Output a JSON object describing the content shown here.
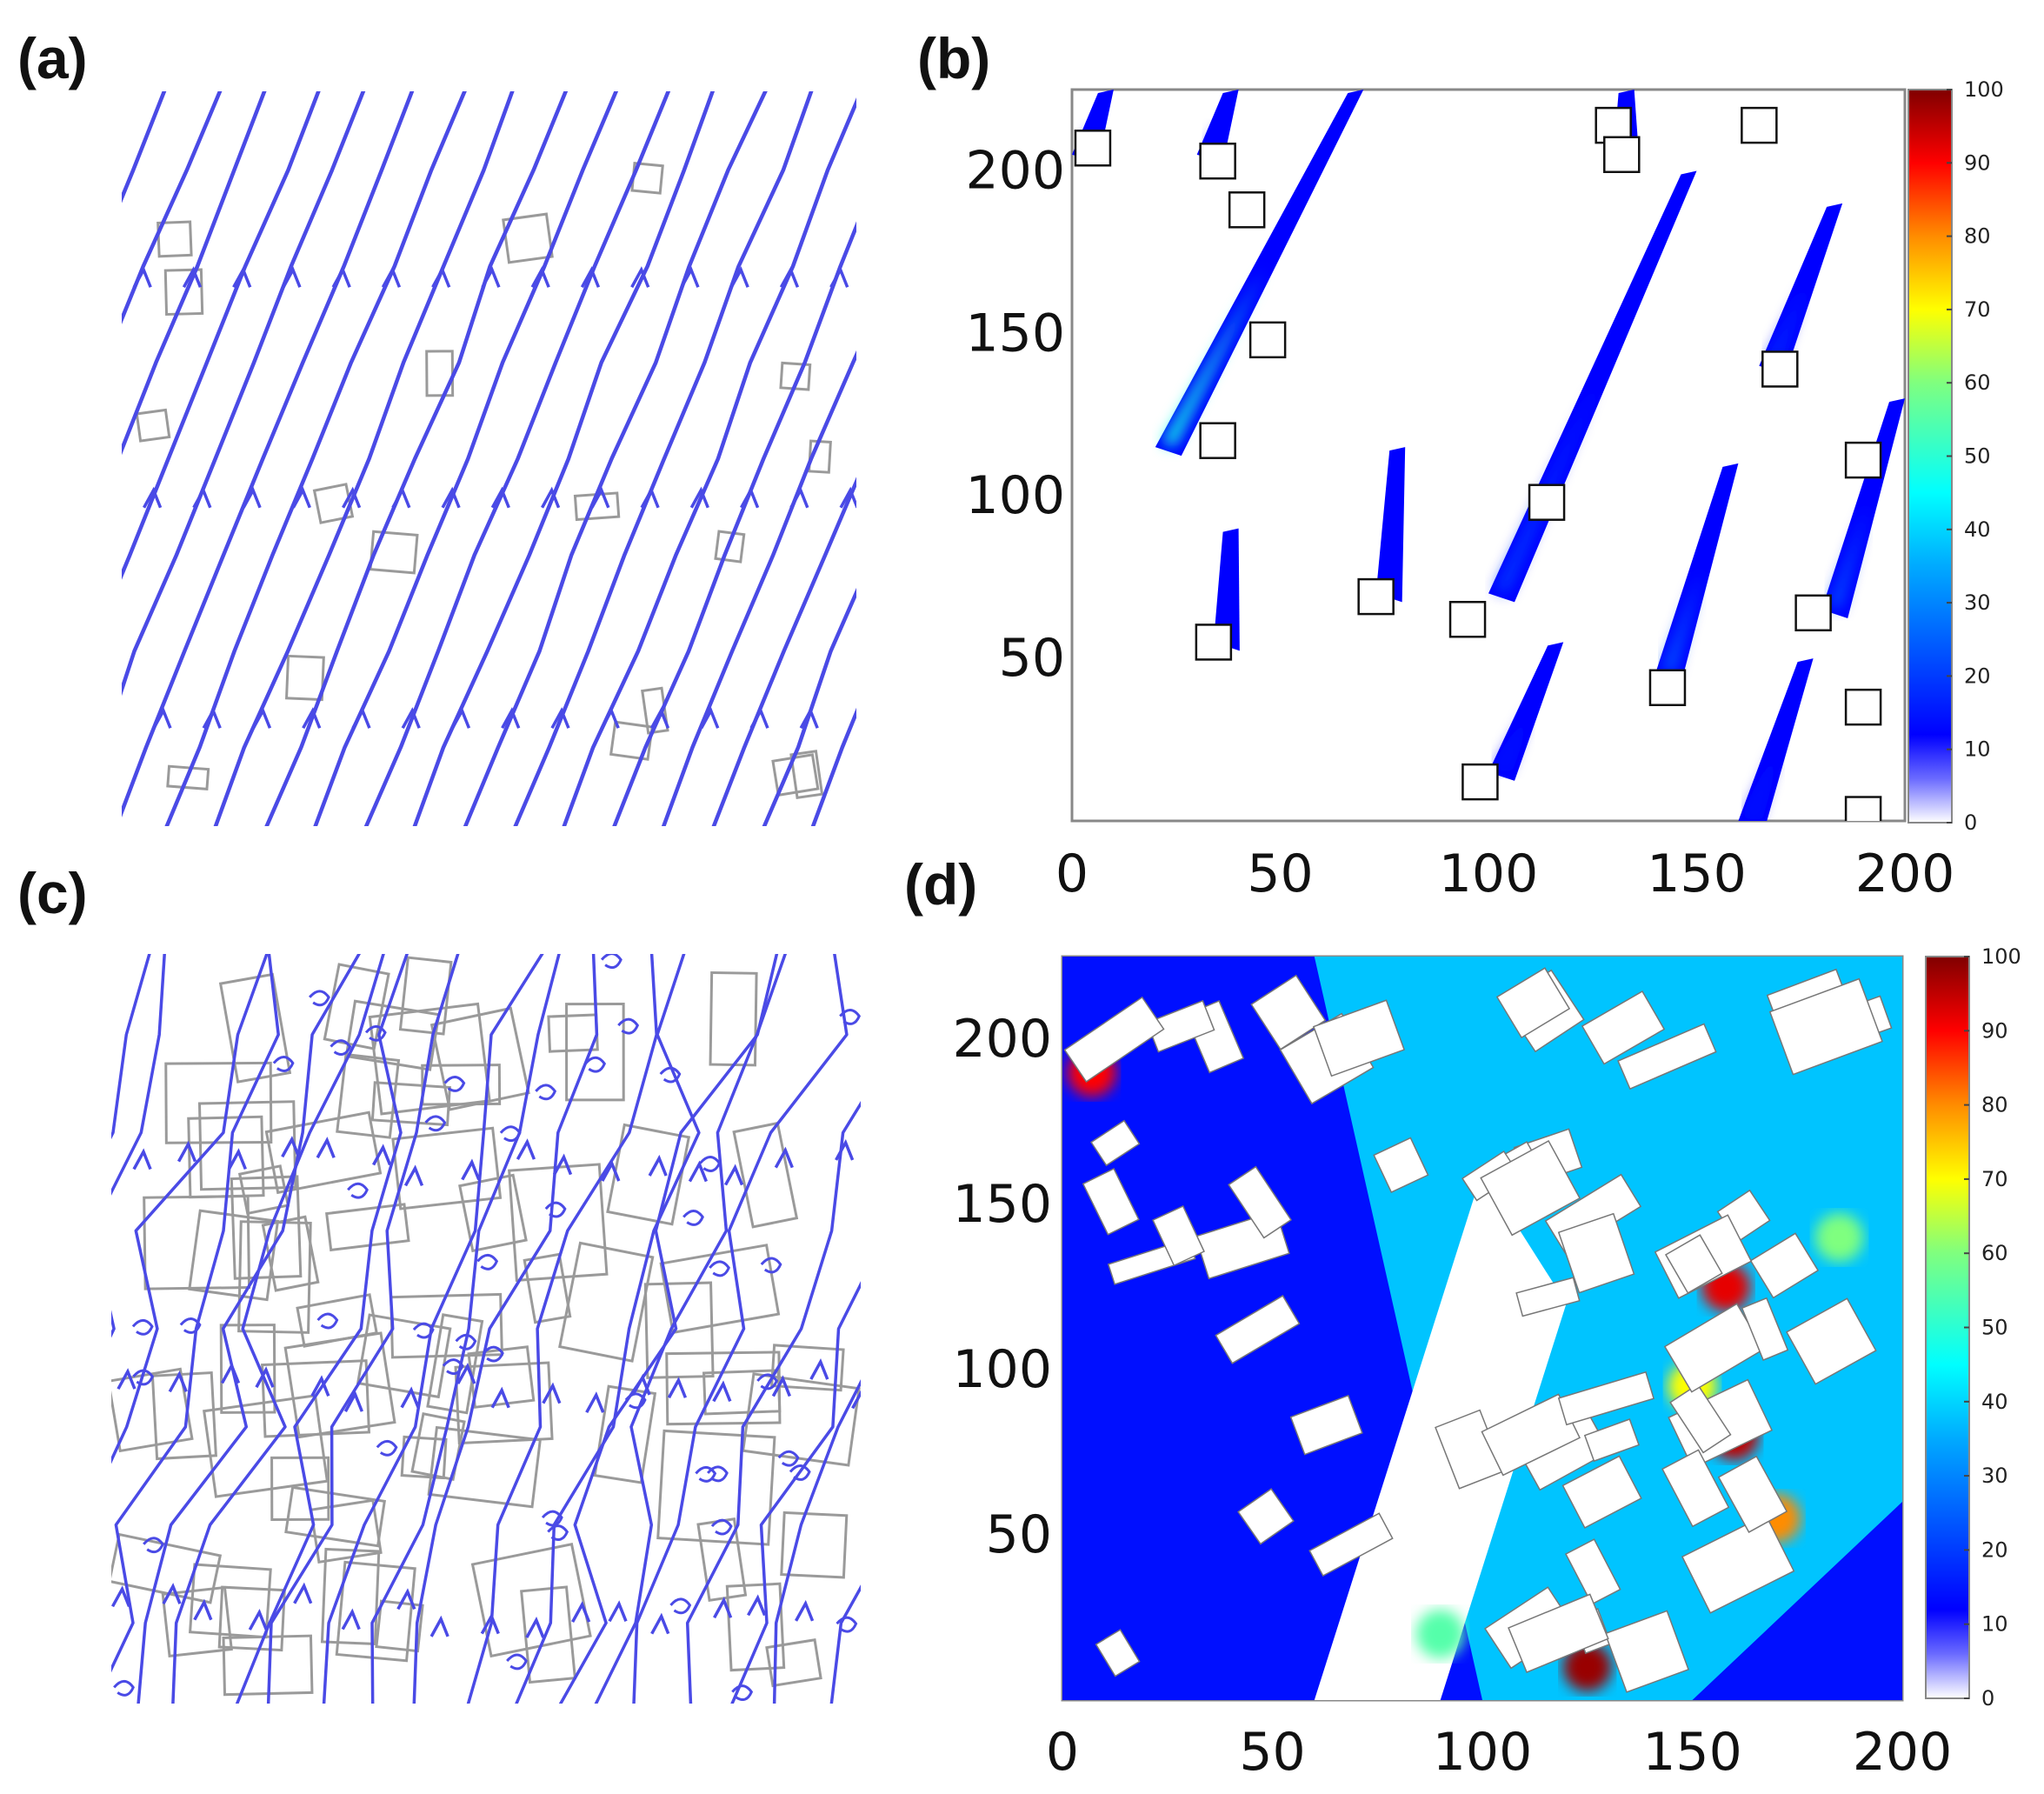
{
  "panels": {
    "a": {
      "label": "(a)"
    },
    "b": {
      "label": "(b)"
    },
    "c": {
      "label": "(c)"
    },
    "d": {
      "label": "(d)"
    }
  },
  "chart_data": [
    {
      "type": "streamline",
      "panel": "(a)",
      "title": "",
      "description_source": "streamlines over sparse buildings",
      "line_color": "#4a4ae6",
      "building_color": "#9a9a9a"
    },
    {
      "type": "heatmap",
      "panel": "(b)",
      "title": "",
      "xlabel": "",
      "ylabel": "",
      "xlim": [
        0,
        200
      ],
      "ylim": [
        0,
        225
      ],
      "x_ticks": [
        "0",
        "50",
        "100",
        "150",
        "200"
      ],
      "y_ticks": [
        "50",
        "100",
        "150",
        "200"
      ],
      "colorbar": {
        "min": 0,
        "max": 100,
        "ticks": [
          "0",
          "10",
          "20",
          "30",
          "40",
          "50",
          "60",
          "70",
          "80",
          "90",
          "100"
        ],
        "colormap": "jet"
      },
      "buildings": [
        {
          "x": 5,
          "y": 207
        },
        {
          "x": 35,
          "y": 203
        },
        {
          "x": 42,
          "y": 188
        },
        {
          "x": 47,
          "y": 148
        },
        {
          "x": 35,
          "y": 117
        },
        {
          "x": 130,
          "y": 214
        },
        {
          "x": 132,
          "y": 205
        },
        {
          "x": 165,
          "y": 214
        },
        {
          "x": 170,
          "y": 139
        },
        {
          "x": 190,
          "y": 111
        },
        {
          "x": 114,
          "y": 98
        },
        {
          "x": 95,
          "y": 62
        },
        {
          "x": 73,
          "y": 69
        },
        {
          "x": 34,
          "y": 55
        },
        {
          "x": 178,
          "y": 64
        },
        {
          "x": 143,
          "y": 41
        },
        {
          "x": 98,
          "y": 12
        },
        {
          "x": 190,
          "y": 35
        },
        {
          "x": 190,
          "y": 2
        }
      ],
      "wakes": [
        {
          "x0": 20,
          "y0": 115,
          "x1": 70,
          "y1": 225,
          "peak": 60
        },
        {
          "x0": 100,
          "y0": 70,
          "x1": 150,
          "y1": 200,
          "peak": 25
        },
        {
          "x0": 140,
          "y0": 45,
          "x1": 160,
          "y1": 110,
          "peak": 30
        },
        {
          "x0": 165,
          "y0": 140,
          "x1": 185,
          "y1": 190,
          "peak": 22
        },
        {
          "x0": 180,
          "y0": 65,
          "x1": 200,
          "y1": 130,
          "peak": 28
        },
        {
          "x0": 100,
          "y0": 15,
          "x1": 118,
          "y1": 55,
          "peak": 18
        },
        {
          "x0": 160,
          "y0": 0,
          "x1": 178,
          "y1": 50,
          "peak": 18
        },
        {
          "x0": 73,
          "y0": 70,
          "x1": 80,
          "y1": 115,
          "peak": 15
        },
        {
          "x0": 34,
          "y0": 55,
          "x1": 40,
          "y1": 90,
          "peak": 14
        },
        {
          "x0": 30,
          "y0": 205,
          "x1": 40,
          "y1": 225,
          "peak": 15
        },
        {
          "x0": 0,
          "y0": 205,
          "x1": 10,
          "y1": 225,
          "peak": 15
        },
        {
          "x0": 130,
          "y0": 205,
          "x1": 135,
          "y1": 225,
          "peak": 15
        }
      ]
    },
    {
      "type": "streamline",
      "panel": "(c)",
      "title": "",
      "description_source": "streamlines over dense buildings",
      "line_color": "#4a4ae6",
      "building_color": "#9a9a9a"
    },
    {
      "type": "heatmap",
      "panel": "(d)",
      "title": "",
      "xlabel": "",
      "ylabel": "",
      "xlim": [
        0,
        200
      ],
      "ylim": [
        0,
        225
      ],
      "x_ticks": [
        "0",
        "50",
        "100",
        "150",
        "200"
      ],
      "y_ticks": [
        "50",
        "100",
        "150",
        "200"
      ],
      "colorbar": {
        "min": 0,
        "max": 100,
        "ticks": [
          "0",
          "10",
          "20",
          "30",
          "40",
          "50",
          "60",
          "70",
          "80",
          "90",
          "100"
        ],
        "colormap": "jet"
      },
      "hotspots": [
        {
          "x": 7,
          "y": 190,
          "v": 90
        },
        {
          "x": 158,
          "y": 125,
          "v": 92
        },
        {
          "x": 160,
          "y": 80,
          "v": 95
        },
        {
          "x": 125,
          "y": 10,
          "v": 98
        },
        {
          "x": 170,
          "y": 55,
          "v": 80
        },
        {
          "x": 150,
          "y": 95,
          "v": 70
        },
        {
          "x": 185,
          "y": 140,
          "v": 60
        },
        {
          "x": 90,
          "y": 20,
          "v": 55
        }
      ]
    }
  ]
}
